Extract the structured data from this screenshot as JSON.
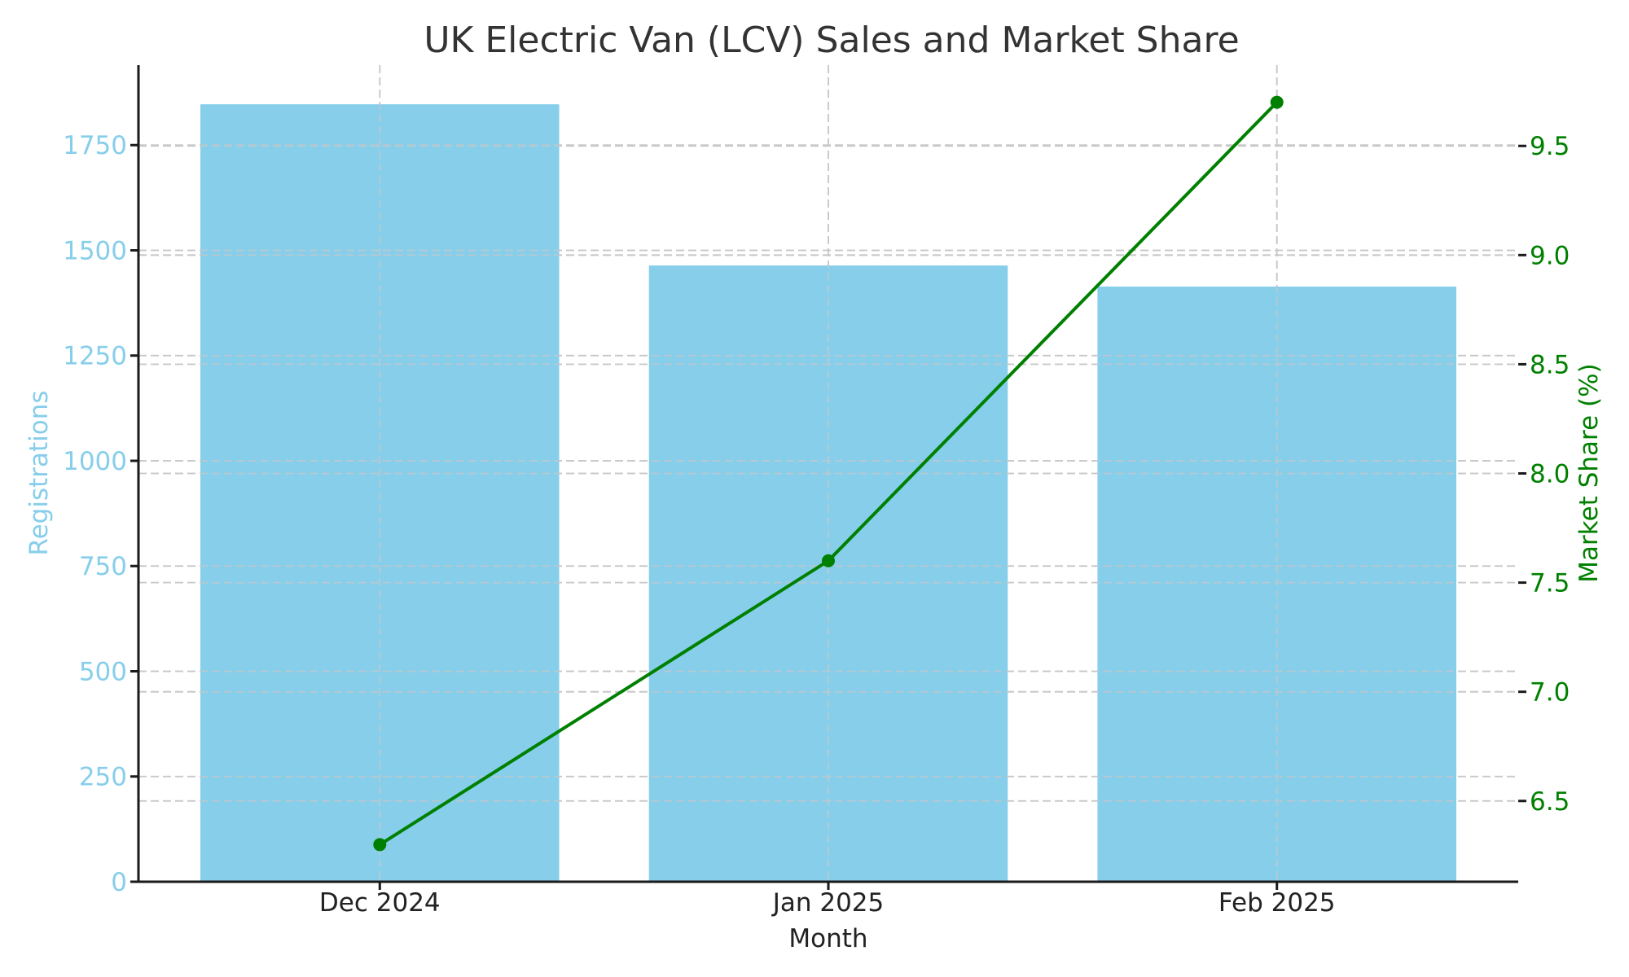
{
  "chart_data": {
    "type": "bar",
    "title": "UK Electric Van (LCV) Sales and Market Share",
    "xlabel": "Month",
    "ylabel": "Registrations",
    "y2label": "Market Share (%)",
    "categories": [
      "Dec 2024",
      "Jan 2025",
      "Feb 2025"
    ],
    "series": [
      {
        "name": "Registrations",
        "type": "bar",
        "axis": "left",
        "color": "#87ceeb",
        "values": [
          1847,
          1464,
          1414
        ]
      },
      {
        "name": "Market Share (%)",
        "type": "line",
        "axis": "right",
        "color": "#008000",
        "marker": "circle",
        "values": [
          6.3,
          7.6,
          9.7
        ]
      }
    ],
    "ylim": [
      0,
      1940
    ],
    "y2lim": [
      6.13,
      9.87
    ],
    "yticks": [
      0,
      250,
      500,
      750,
      1000,
      1250,
      1500,
      1750
    ],
    "y2ticks": [
      6.5,
      7.0,
      7.5,
      8.0,
      8.5,
      9.0,
      9.5
    ],
    "ytick_labels": [
      "0",
      "250",
      "500",
      "750",
      "1000",
      "1250",
      "1500",
      "1750"
    ],
    "y2tick_labels": [
      "6.5",
      "7.0",
      "7.5",
      "8.0",
      "8.5",
      "9.0",
      "9.5"
    ],
    "grid": true,
    "grid_style": "dashed",
    "legend": null
  },
  "colors": {
    "bar": "#87ceeb",
    "line": "#008000",
    "left_axis_text": "#87ceeb",
    "right_axis_text": "#008000",
    "title": "#333333"
  }
}
